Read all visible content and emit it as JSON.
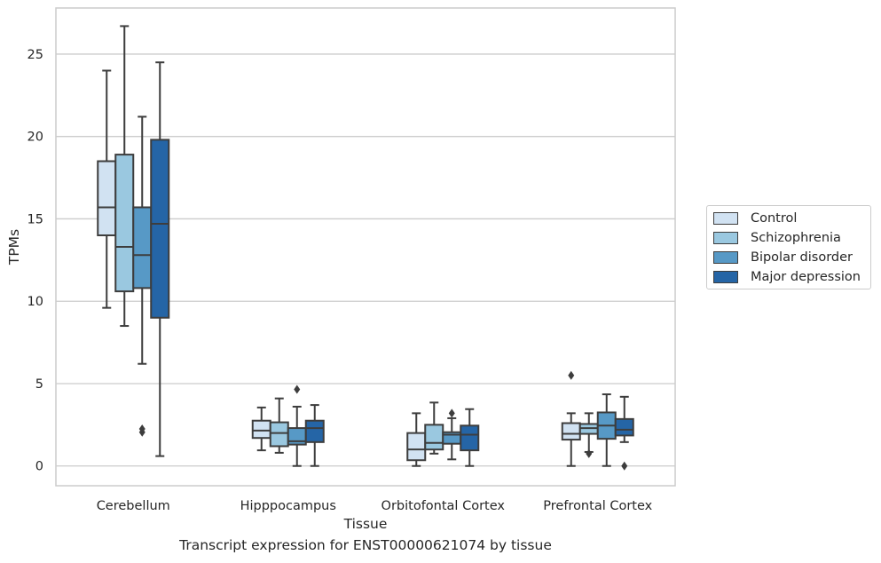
{
  "chart_data": {
    "type": "box",
    "xlabel": "Tissue",
    "ylabel": "TPMs",
    "ylim": [
      -1.2,
      27.8
    ],
    "yticks": [
      0,
      5,
      10,
      15,
      20,
      25
    ],
    "grid": "horizontal",
    "legend_position": "right",
    "categories": [
      "Cerebellum",
      "Hipppocampus",
      "Orbitofontal Cortex",
      "Prefrontal Cortex"
    ],
    "series": [
      {
        "name": "Control",
        "color": "#d1e2f2",
        "boxes": [
          {
            "whisker_low": 9.6,
            "q1": 14.0,
            "median": 15.7,
            "q3": 18.5,
            "whisker_high": 24.0,
            "outliers": []
          },
          {
            "whisker_low": 0.95,
            "q1": 1.7,
            "median": 2.15,
            "q3": 2.75,
            "whisker_high": 3.55,
            "outliers": []
          },
          {
            "whisker_low": 0.0,
            "q1": 0.35,
            "median": 1.0,
            "q3": 2.0,
            "whisker_high": 3.2,
            "outliers": []
          },
          {
            "whisker_low": 0.0,
            "q1": 1.6,
            "median": 1.95,
            "q3": 2.6,
            "whisker_high": 3.2,
            "outliers": [
              5.5
            ]
          }
        ]
      },
      {
        "name": "Schizophrenia",
        "color": "#9ac8e0",
        "boxes": [
          {
            "whisker_low": 8.5,
            "q1": 10.6,
            "median": 13.3,
            "q3": 18.9,
            "whisker_high": 26.7,
            "outliers": []
          },
          {
            "whisker_low": 0.8,
            "q1": 1.2,
            "median": 2.0,
            "q3": 2.65,
            "whisker_high": 4.1,
            "outliers": []
          },
          {
            "whisker_low": 0.75,
            "q1": 1.0,
            "median": 1.4,
            "q3": 2.5,
            "whisker_high": 3.85,
            "outliers": []
          },
          {
            "whisker_low": 0.85,
            "q1": 1.95,
            "median": 2.3,
            "q3": 2.55,
            "whisker_high": 3.2,
            "outliers": [
              0.75
            ]
          }
        ]
      },
      {
        "name": "Bipolar disorder",
        "color": "#5799c6",
        "boxes": [
          {
            "whisker_low": 6.2,
            "q1": 10.8,
            "median": 12.8,
            "q3": 15.7,
            "whisker_high": 21.2,
            "outliers": [
              2.05,
              2.25
            ]
          },
          {
            "whisker_low": 0.0,
            "q1": 1.3,
            "median": 1.5,
            "q3": 2.3,
            "whisker_high": 3.6,
            "outliers": [
              4.65
            ]
          },
          {
            "whisker_low": 0.4,
            "q1": 1.35,
            "median": 1.9,
            "q3": 2.05,
            "whisker_high": 2.9,
            "outliers": [
              3.2
            ]
          },
          {
            "whisker_low": 0.0,
            "q1": 1.65,
            "median": 2.45,
            "q3": 3.25,
            "whisker_high": 4.35,
            "outliers": []
          }
        ]
      },
      {
        "name": "Major depression",
        "color": "#2565a6",
        "boxes": [
          {
            "whisker_low": 0.6,
            "q1": 9.0,
            "median": 14.7,
            "q3": 19.8,
            "whisker_high": 24.5,
            "outliers": []
          },
          {
            "whisker_low": 0.0,
            "q1": 1.45,
            "median": 2.3,
            "q3": 2.75,
            "whisker_high": 3.7,
            "outliers": []
          },
          {
            "whisker_low": 0.0,
            "q1": 0.95,
            "median": 1.9,
            "q3": 2.45,
            "whisker_high": 3.45,
            "outliers": []
          },
          {
            "whisker_low": 1.45,
            "q1": 1.85,
            "median": 2.2,
            "q3": 2.85,
            "whisker_high": 4.2,
            "outliers": [
              0.0
            ]
          }
        ]
      }
    ]
  },
  "caption": "Transcript expression for ENST00000621074 by tissue"
}
